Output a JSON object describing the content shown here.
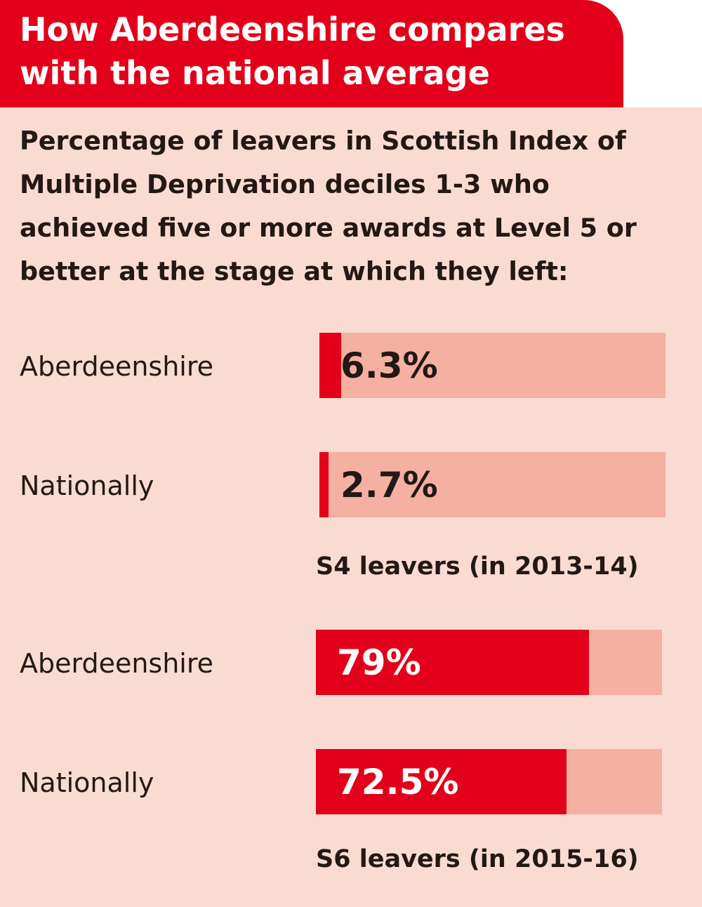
{
  "header": {
    "title_lines": [
      "How Aberdeenshire compares",
      "with the national average"
    ]
  },
  "subtitle_lines": [
    "Percentage of leavers in Scottish Index of",
    "Multiple Deprivation deciles 1-3 who",
    "achieved five or more awards at Level 5 or",
    "better at the stage at which they left:"
  ],
  "colors": {
    "accent": "#e2001a",
    "track": "#f4b0a0",
    "background": "#f9dbd2",
    "text": "#231815"
  },
  "chart_data": [
    {
      "type": "bar",
      "orientation": "horizontal",
      "caption": "S4 leavers (in 2013-14)",
      "categories": [
        "Aberdeenshire",
        "Nationally"
      ],
      "values": [
        6.3,
        2.7
      ],
      "labels": [
        "6.3%",
        "2.7%"
      ],
      "xlim": [
        0,
        100
      ]
    },
    {
      "type": "bar",
      "orientation": "horizontal",
      "caption": "S6 leavers (in 2015-16)",
      "categories": [
        "Aberdeenshire",
        "Nationally"
      ],
      "values": [
        79,
        72.5
      ],
      "labels": [
        "79%",
        "72.5%"
      ],
      "xlim": [
        0,
        100
      ]
    }
  ]
}
